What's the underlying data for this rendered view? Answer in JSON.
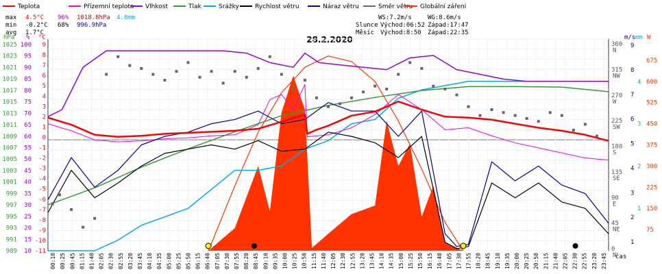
{
  "chart_data": {
    "type": "line",
    "title": "28.2.2020",
    "legend": [
      {
        "label": "Teplota",
        "color": "#ff0000"
      },
      {
        "label": "Přízemní teplota",
        "color": "#ee00ee"
      },
      {
        "label": "Vlhkost",
        "color": "#9900cc"
      },
      {
        "label": "Tlak",
        "color": "#339933"
      },
      {
        "label": "Srážky",
        "color": "#00aaee"
      },
      {
        "label": "Rychlost větru",
        "color": "#000000"
      },
      {
        "label": "Náraz větru",
        "color": "#000088"
      },
      {
        "label": "Směr větru",
        "color": "#666666"
      },
      {
        "label": "Globální záření",
        "color": "#ff3300"
      }
    ],
    "stats": {
      "max": {
        "label": "max",
        "temp": "4.5°C",
        "hum": "96%",
        "press": "1018.8hPa",
        "rain": "4.0mm"
      },
      "min": {
        "label": "min",
        "temp": "-0.2°C",
        "hum": "68%",
        "press": "996.9hPa"
      },
      "avg": {
        "label": "avg",
        "temp": "1.7°C"
      }
    },
    "info": {
      "ws": "WS:7.2m/s",
      "wg": "WG:8.6m/s",
      "sun_label": "Slunce",
      "sun_rise": "Východ:06:52",
      "sun_set": "Západ:17:47",
      "moon_label": "Měsíc",
      "moon_rise": "Východ:8:50",
      "moon_set": "Západ:22:35"
    },
    "axes": {
      "hpa_unit": "hPa",
      "pct_unit": "%",
      "c_unit": "°C",
      "ms_unit": "m/s",
      "mm_unit": "mm",
      "w_unit": "W",
      "xlabel": "čas",
      "hpa_ticks": [
        "1025",
        "1023",
        "1021",
        "1019",
        "1017",
        "1015",
        "1013",
        "1011",
        "1009",
        "1007",
        "1005",
        "1003",
        "1001",
        "999",
        "997",
        "995",
        "993",
        "991",
        "989"
      ],
      "pct_ticks": [
        "100",
        "95",
        "90",
        "85",
        "80",
        "75",
        "70",
        "65",
        "60",
        "55",
        "50",
        "45",
        "40",
        "35",
        "30",
        "25",
        "20",
        "15",
        "10"
      ],
      "c_ticks": [
        "9",
        "8",
        "7",
        "6",
        "5",
        "4",
        "3",
        "2",
        "1",
        "0",
        "-1",
        "-2",
        "-3",
        "-4",
        "-5",
        "-6",
        "-7",
        "-8",
        "-9",
        "-10",
        "-11"
      ],
      "dir_ticks": [
        {
          "deg": "360",
          "dir": "N"
        },
        {
          "deg": "315",
          "dir": "NW"
        },
        {
          "deg": "270",
          "dir": "W"
        },
        {
          "deg": "225",
          "dir": "SW"
        },
        {
          "deg": "180",
          "dir": "S"
        },
        {
          "deg": "135",
          "dir": "SE"
        },
        {
          "deg": "90",
          "dir": "E"
        },
        {
          "deg": "45",
          "dir": "NE"
        },
        {
          "deg": "0",
          "dir": "N"
        }
      ],
      "ms_ticks": [
        "9",
        "8",
        "7",
        "6",
        "5",
        "4",
        "3",
        "2",
        "1"
      ],
      "mm_ticks": [
        "4",
        "3",
        "2",
        "1"
      ],
      "w_ticks": [
        "675",
        "600",
        "525",
        "450",
        "375",
        "300",
        "225",
        "150",
        "75"
      ],
      "xticks": [
        "00:10",
        "00:25",
        "00:45",
        "01:15",
        "01:40",
        "02:05",
        "02:30",
        "02:55",
        "03:20",
        "03:45",
        "04:10",
        "04:35",
        "05:00",
        "05:25",
        "05:50",
        "06:15",
        "06:40",
        "07:05",
        "07:30",
        "07:55",
        "08:20",
        "08:45",
        "09:10",
        "09:35",
        "10:00",
        "10:25",
        "10:50",
        "11:15",
        "11:40",
        "12:05",
        "12:30",
        "12:55",
        "13:20",
        "13:45",
        "14:10",
        "14:35",
        "15:00",
        "15:25",
        "15:50",
        "16:15",
        "16:40",
        "17:05",
        "17:30",
        "17:55",
        "18:20",
        "18:45",
        "19:10",
        "19:35",
        "20:00",
        "20:25",
        "20:50",
        "21:15",
        "21:40",
        "22:05",
        "22:30",
        "22:55",
        "23:20",
        "23:45"
      ]
    },
    "series": {
      "temperature": {
        "x": [
          0,
          1,
          2,
          3,
          4,
          5,
          6,
          7,
          8,
          9,
          10,
          11,
          11.1,
          11.5,
          12,
          13,
          14,
          15,
          16,
          17,
          18,
          19,
          20,
          21,
          22,
          23,
          24
        ],
        "y": [
          2.2,
          1.5,
          0.5,
          0.3,
          0.4,
          0.6,
          0.7,
          0.8,
          0.9,
          1.1,
          1.8,
          2.5,
          0.6,
          1.0,
          1.4,
          2.4,
          2.8,
          3.8,
          3.0,
          2.3,
          2.2,
          2.0,
          1.6,
          1.2,
          0.9,
          0.5,
          -0.1
        ]
      },
      "ground_temperature": {
        "x": [
          0,
          1,
          2,
          3,
          4,
          5,
          6,
          7,
          8,
          9,
          9.5,
          10,
          10.5,
          11,
          11.1,
          12,
          13,
          14,
          15,
          16,
          17,
          18,
          19,
          20,
          21,
          22,
          23,
          24
        ],
        "y": [
          1.6,
          0.9,
          0.0,
          -0.2,
          -0.1,
          0.1,
          0.2,
          0.4,
          0.5,
          1.5,
          4.0,
          4.5,
          3.0,
          5.5,
          0.3,
          0.5,
          1.2,
          2.5,
          4.5,
          3.0,
          1.0,
          1.2,
          0.4,
          -0.3,
          -0.8,
          -1.3,
          -1.8,
          -2.0
        ]
      },
      "humidity": {
        "x": [
          0,
          0.6,
          1.5,
          2.5,
          3.5,
          4.5,
          5.5,
          6.5,
          7.5,
          8.5,
          9.5,
          10.5,
          11,
          11.6,
          12.5,
          13.5,
          14.5,
          15.5,
          16.5,
          17.5,
          18.5,
          19.5,
          20.5,
          21.5,
          22.5,
          23.5,
          24
        ],
        "y": [
          67,
          70,
          88,
          95,
          95,
          95,
          95,
          95,
          95,
          94,
          90,
          88,
          94,
          90,
          89,
          88,
          87,
          92,
          93,
          87,
          85,
          83,
          82,
          82,
          82,
          82,
          82
        ]
      },
      "pressure": {
        "x": [
          0,
          2,
          4,
          6,
          8,
          10,
          12,
          14,
          16,
          18,
          20,
          22,
          23,
          24
        ],
        "y": [
          997.0,
          1000.0,
          1003.6,
          1006.8,
          1009.8,
          1012.6,
          1014.4,
          1015.8,
          1017.0,
          1017.7,
          1017.7,
          1017.6,
          1017.2,
          1016.8
        ]
      },
      "rain": {
        "x": [
          0,
          2,
          3,
          4,
          6,
          8,
          9,
          10,
          11,
          12,
          13,
          14,
          15,
          16,
          17,
          18,
          20,
          21,
          22,
          24
        ],
        "y": [
          0.0,
          0.0,
          0.25,
          0.6,
          1.0,
          1.9,
          1.9,
          2.0,
          2.4,
          2.6,
          3.0,
          3.1,
          3.6,
          3.8,
          3.9,
          4.0,
          4.0,
          4.0,
          4.0,
          4.0
        ]
      },
      "wind_speed": {
        "x": [
          0,
          1,
          2,
          3,
          4,
          5,
          6,
          7,
          8,
          9,
          10,
          11,
          12,
          13,
          14,
          15,
          16,
          17,
          17.5,
          18,
          19,
          20,
          21,
          22,
          23,
          24
        ],
        "y": [
          1.8,
          3.8,
          2.5,
          3.2,
          4.0,
          4.6,
          4.8,
          5.0,
          4.8,
          5.2,
          4.7,
          4.8,
          5.6,
          5.4,
          5.1,
          4.4,
          5.4,
          0.4,
          0.1,
          0.2,
          3.2,
          2.5,
          3.2,
          2.3,
          2.0,
          0.8
        ]
      },
      "wind_gust": {
        "x": [
          0,
          1,
          2,
          3,
          4,
          5,
          6,
          7,
          8,
          9,
          10,
          11,
          12,
          13,
          14,
          15,
          16,
          17,
          17.5,
          18,
          19,
          20,
          21,
          22,
          23,
          24
        ],
        "y": [
          2.4,
          4.4,
          3.0,
          3.8,
          5.0,
          5.4,
          5.6,
          6.0,
          6.2,
          6.6,
          6.0,
          6.2,
          7.0,
          6.6,
          6.6,
          5.4,
          6.6,
          0.8,
          0.2,
          0.3,
          4.2,
          3.3,
          4.0,
          3.1,
          2.7,
          1.3
        ]
      },
      "wind_direction": {
        "x": [
          0.2,
          0.5,
          1,
          1.5,
          2,
          2.5,
          3,
          3.5,
          4,
          4.5,
          5,
          5.5,
          6,
          6.5,
          7,
          7.5,
          8,
          8.5,
          9,
          9.5,
          10,
          10.5,
          11,
          11.5,
          12,
          12.5,
          13,
          13.5,
          14,
          14.5,
          15,
          15.5,
          16,
          16.5,
          17,
          17.5,
          18,
          18.5,
          19,
          19.5,
          20,
          20.5,
          21,
          21.5,
          22,
          22.5,
          23,
          23.5
        ],
        "y": [
          80,
          95,
          70,
          40,
          55,
          300,
          330,
          315,
          310,
          300,
          290,
          305,
          320,
          295,
          305,
          285,
          305,
          295,
          310,
          330,
          300,
          275,
          290,
          260,
          245,
          250,
          260,
          270,
          280,
          275,
          300,
          320,
          310,
          280,
          275,
          265,
          245,
          230,
          240,
          235,
          230,
          225,
          220,
          235,
          230,
          205,
          215,
          195
        ]
      },
      "solar_radiation": {
        "x": [
          6.87,
          8,
          9,
          9.5,
          10,
          10.5,
          11,
          11.3,
          12,
          13,
          14,
          14.5,
          15,
          15.5,
          16,
          16.5,
          17,
          17.78
        ],
        "y": [
          0,
          80,
          300,
          140,
          490,
          620,
          500,
          10,
          60,
          130,
          160,
          460,
          300,
          380,
          120,
          230,
          30,
          0
        ]
      },
      "solar_clear_sky": {
        "x": [
          6.87,
          8,
          9,
          10,
          11,
          12,
          13,
          14,
          15,
          16,
          17,
          17.78
        ],
        "y": [
          0,
          230,
          420,
          560,
          650,
          690,
          670,
          600,
          460,
          290,
          100,
          0
        ]
      }
    },
    "sun_rise_hour": 6.87,
    "sun_set_hour": 17.78,
    "moon_rise_hour": 8.83,
    "moon_set_hour": 22.58,
    "xlim": [
      0,
      24
    ],
    "temp_ylim": [
      -11,
      10
    ],
    "humidity_ylim": [
      10,
      100
    ],
    "pressure_ylim": [
      989,
      1026
    ],
    "wind_ylim": [
      0,
      10
    ],
    "direction_ylim": [
      0,
      360
    ],
    "rain_ylim": [
      0,
      5
    ],
    "radiation_ylim": [
      0,
      750
    ]
  }
}
